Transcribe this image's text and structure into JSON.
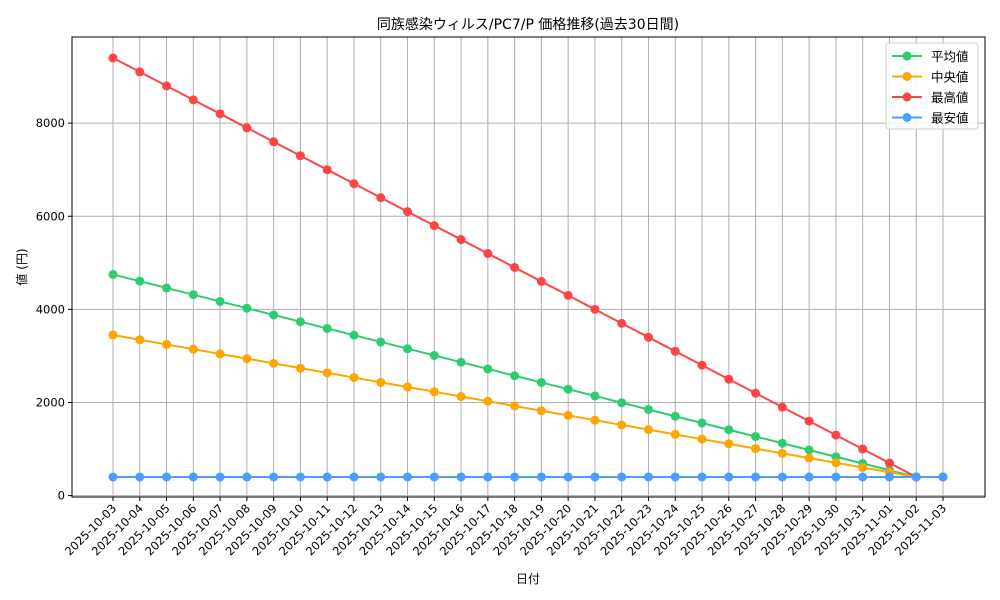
{
  "chart_data": {
    "type": "line",
    "title": "同族感染ウィルス/PC7/P 価格推移(過去30日間)",
    "xlabel": "日付",
    "ylabel": "値 (円)",
    "ylim": [
      -30,
      9850
    ],
    "yticks": [
      0,
      2000,
      4000,
      6000,
      8000
    ],
    "grid": true,
    "legend_position": "upper right",
    "x": [
      "2025-10-03",
      "2025-10-04",
      "2025-10-05",
      "2025-10-06",
      "2025-10-07",
      "2025-10-08",
      "2025-10-09",
      "2025-10-10",
      "2025-10-11",
      "2025-10-12",
      "2025-10-13",
      "2025-10-14",
      "2025-10-15",
      "2025-10-16",
      "2025-10-17",
      "2025-10-18",
      "2025-10-19",
      "2025-10-20",
      "2025-10-21",
      "2025-10-22",
      "2025-10-23",
      "2025-10-24",
      "2025-10-25",
      "2025-10-26",
      "2025-10-27",
      "2025-10-28",
      "2025-10-29",
      "2025-10-30",
      "2025-10-31",
      "2025-11-01",
      "2025-11-02",
      "2025-11-03"
    ],
    "series": [
      {
        "name": "平均値",
        "color": "#2ecc71",
        "values": [
          4750,
          4605,
          4460,
          4315,
          4170,
          4025,
          3880,
          3735,
          3590,
          3445,
          3300,
          3155,
          3010,
          2865,
          2720,
          2575,
          2430,
          2285,
          2140,
          1995,
          1850,
          1705,
          1560,
          1415,
          1270,
          1125,
          980,
          835,
          690,
          545,
          400,
          400
        ]
      },
      {
        "name": "中央値",
        "color": "#ffa500",
        "values": [
          3450,
          3348,
          3247,
          3145,
          3043,
          2942,
          2840,
          2738,
          2637,
          2535,
          2433,
          2332,
          2230,
          2128,
          2027,
          1925,
          1823,
          1722,
          1620,
          1518,
          1417,
          1315,
          1213,
          1112,
          1010,
          908,
          807,
          705,
          603,
          502,
          400,
          400
        ]
      },
      {
        "name": "最高値",
        "color": "#ff4444",
        "values": [
          9400,
          9100,
          8800,
          8500,
          8200,
          7900,
          7600,
          7300,
          7000,
          6700,
          6400,
          6100,
          5800,
          5500,
          5200,
          4900,
          4600,
          4300,
          4000,
          3700,
          3400,
          3100,
          2800,
          2500,
          2200,
          1900,
          1600,
          1300,
          1000,
          700,
          400,
          400
        ]
      },
      {
        "name": "最安値",
        "color": "#4a9eff",
        "values": [
          400,
          400,
          400,
          400,
          400,
          400,
          400,
          400,
          400,
          400,
          400,
          400,
          400,
          400,
          400,
          400,
          400,
          400,
          400,
          400,
          400,
          400,
          400,
          400,
          400,
          400,
          400,
          400,
          400,
          400,
          400,
          400
        ]
      }
    ]
  }
}
